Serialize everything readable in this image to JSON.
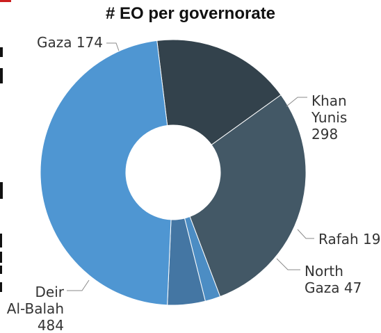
{
  "chart_data": {
    "type": "pie",
    "title": "# EO per governorate",
    "slices": [
      {
        "label_lines": [
          "Gaza 174"
        ],
        "value": 174,
        "color": "#33424c"
      },
      {
        "label_lines": [
          "Khan",
          "Yunis",
          "298"
        ],
        "value": 298,
        "color": "#435866"
      },
      {
        "label_lines": [
          "Rafah 19"
        ],
        "value": 19,
        "color": "#4c8dc4"
      },
      {
        "label_lines": [
          "North",
          "Gaza 47"
        ],
        "value": 47,
        "color": "#4476a3"
      },
      {
        "label_lines": [
          "Deir",
          "Al-Balah",
          "484"
        ],
        "value": 484,
        "color": "#4f96d2"
      }
    ],
    "legend": "none",
    "donut": true
  }
}
